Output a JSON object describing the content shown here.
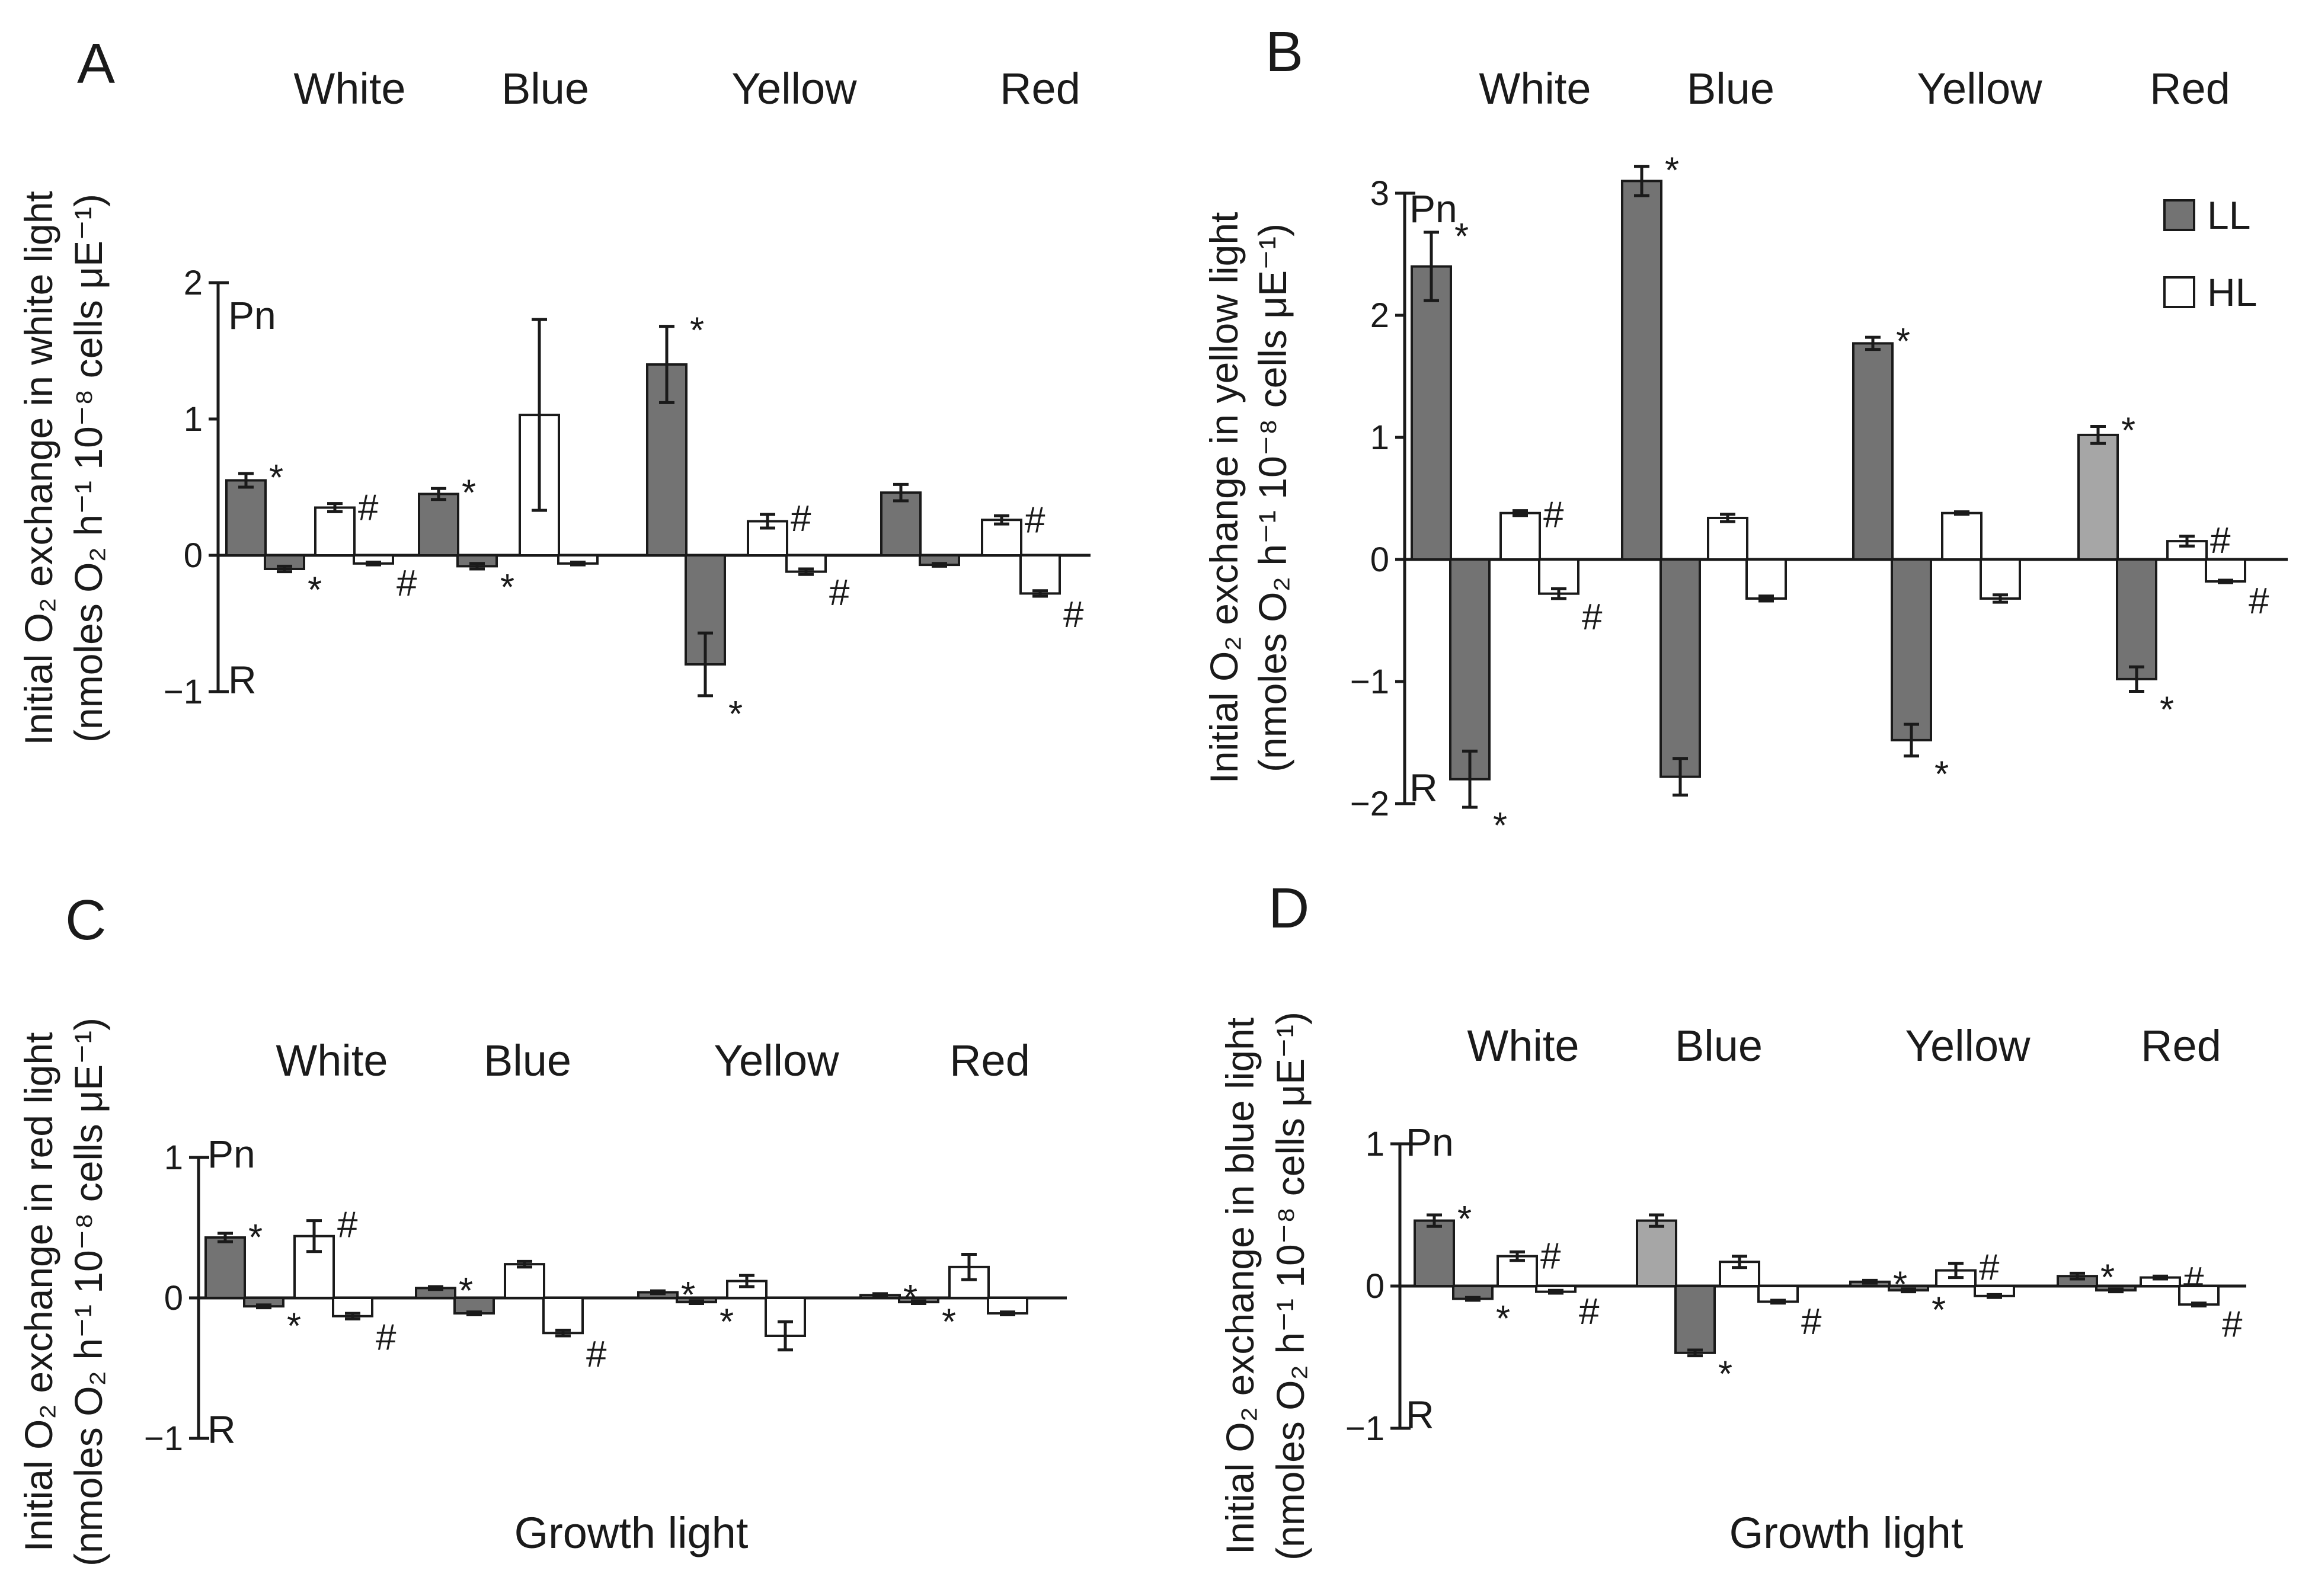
{
  "colors": {
    "LL": "#737373",
    "LL_light": "#a6a6a6",
    "HL": "#ffffff",
    "text": "#1a1a1a"
  },
  "legend": [
    {
      "key": "LL",
      "label": "LL"
    },
    {
      "key": "HL",
      "label": "HL"
    }
  ],
  "labels": {
    "pn": "Pn",
    "r": "R"
  },
  "chart_data": [
    {
      "panel": "A",
      "type": "bar",
      "categories": [
        "White",
        "Blue",
        "Yellow",
        "Red"
      ],
      "xlabel": "",
      "ylabel": [
        "Initial O₂ exchange in white light",
        "(nmoles O₂ h⁻¹ 10⁻⁸ cells μE⁻¹)"
      ],
      "ylim": [
        -1,
        2
      ],
      "yticks": [
        -1,
        0,
        1,
        2
      ],
      "bars": [
        {
          "group": "White",
          "series": "LL",
          "value": 0.55,
          "err": 0.05,
          "mark": "*"
        },
        {
          "group": "White",
          "series": "LL",
          "value": -0.1,
          "err": 0.02,
          "mark": "*"
        },
        {
          "group": "White",
          "series": "HL",
          "value": 0.35,
          "err": 0.03,
          "mark": "#"
        },
        {
          "group": "White",
          "series": "HL",
          "value": -0.06,
          "err": 0.01,
          "mark": "#"
        },
        {
          "group": "Blue",
          "series": "LL",
          "value": 0.45,
          "err": 0.04,
          "mark": "*"
        },
        {
          "group": "Blue",
          "series": "LL",
          "value": -0.08,
          "err": 0.02,
          "mark": "*"
        },
        {
          "group": "Blue",
          "series": "HL",
          "value": 1.03,
          "err": 0.7,
          "mark": ""
        },
        {
          "group": "Blue",
          "series": "HL",
          "value": -0.06,
          "err": 0.01,
          "mark": ""
        },
        {
          "group": "Yellow",
          "series": "LL",
          "value": 1.4,
          "err": 0.28,
          "mark": "*"
        },
        {
          "group": "Yellow",
          "series": "LL",
          "value": -0.8,
          "err": 0.23,
          "mark": "*"
        },
        {
          "group": "Yellow",
          "series": "HL",
          "value": 0.25,
          "err": 0.05,
          "mark": "#"
        },
        {
          "group": "Yellow",
          "series": "HL",
          "value": -0.12,
          "err": 0.02,
          "mark": "#"
        },
        {
          "group": "Red",
          "series": "LL",
          "value": 0.46,
          "err": 0.06,
          "mark": ""
        },
        {
          "group": "Red",
          "series": "LL",
          "value": -0.07,
          "err": 0.01,
          "mark": ""
        },
        {
          "group": "Red",
          "series": "HL",
          "value": 0.26,
          "err": 0.03,
          "mark": "#"
        },
        {
          "group": "Red",
          "series": "HL",
          "value": -0.28,
          "err": 0.02,
          "mark": "#"
        }
      ]
    },
    {
      "panel": "B",
      "type": "bar",
      "categories": [
        "White",
        "Blue",
        "Yellow",
        "Red"
      ],
      "xlabel": "",
      "ylabel": [
        "Initial O₂ exchange in yellow light",
        "(nmoles O₂ h⁻¹ 10⁻⁸ cells μE⁻¹)"
      ],
      "ylim": [
        -2,
        3
      ],
      "yticks": [
        -2,
        -1,
        0,
        1,
        2,
        3
      ],
      "legend_shown": true,
      "bars": [
        {
          "group": "White",
          "series": "LL",
          "value": 2.4,
          "err": 0.28,
          "mark": "*"
        },
        {
          "group": "White",
          "series": "LL",
          "value": -1.8,
          "err": 0.23,
          "mark": "*"
        },
        {
          "group": "White",
          "series": "HL",
          "value": 0.38,
          "err": 0.02,
          "mark": "#"
        },
        {
          "group": "White",
          "series": "HL",
          "value": -0.28,
          "err": 0.04,
          "mark": "#"
        },
        {
          "group": "Blue",
          "series": "LL",
          "value": 3.1,
          "err": 0.12,
          "mark": "*"
        },
        {
          "group": "Blue",
          "series": "LL",
          "value": -1.78,
          "err": 0.15,
          "mark": ""
        },
        {
          "group": "Blue",
          "series": "HL",
          "value": 0.34,
          "err": 0.03,
          "mark": ""
        },
        {
          "group": "Blue",
          "series": "HL",
          "value": -0.32,
          "err": 0.02,
          "mark": ""
        },
        {
          "group": "Yellow",
          "series": "LL",
          "value": 1.77,
          "err": 0.05,
          "mark": "*"
        },
        {
          "group": "Yellow",
          "series": "LL",
          "value": -1.48,
          "err": 0.13,
          "mark": "*"
        },
        {
          "group": "Yellow",
          "series": "HL",
          "value": 0.38,
          "err": 0.01,
          "mark": ""
        },
        {
          "group": "Yellow",
          "series": "HL",
          "value": -0.32,
          "err": 0.03,
          "mark": ""
        },
        {
          "group": "Red",
          "series": "LL_light",
          "value": 1.02,
          "err": 0.07,
          "mark": "*"
        },
        {
          "group": "Red",
          "series": "LL",
          "value": -0.98,
          "err": 0.1,
          "mark": "*"
        },
        {
          "group": "Red",
          "series": "HL",
          "value": 0.15,
          "err": 0.04,
          "mark": "#"
        },
        {
          "group": "Red",
          "series": "HL",
          "value": -0.18,
          "err": 0.01,
          "mark": "#"
        }
      ]
    },
    {
      "panel": "C",
      "type": "bar",
      "categories": [
        "White",
        "Blue",
        "Yellow",
        "Red"
      ],
      "xlabel": "Growth light",
      "ylabel": [
        "Initial O₂ exchange in red light",
        "(nmoles O₂ h⁻¹ 10⁻⁸ cells μE⁻¹)"
      ],
      "ylim": [
        -1,
        1
      ],
      "yticks": [
        -1,
        0,
        1
      ],
      "bars": [
        {
          "group": "White",
          "series": "LL",
          "value": 0.43,
          "err": 0.03,
          "mark": "*"
        },
        {
          "group": "White",
          "series": "LL",
          "value": -0.06,
          "err": 0.01,
          "mark": "*"
        },
        {
          "group": "White",
          "series": "HL",
          "value": 0.44,
          "err": 0.11,
          "mark": "#"
        },
        {
          "group": "White",
          "series": "HL",
          "value": -0.13,
          "err": 0.02,
          "mark": "#"
        },
        {
          "group": "Blue",
          "series": "LL",
          "value": 0.07,
          "err": 0.01,
          "mark": "*"
        },
        {
          "group": "Blue",
          "series": "LL",
          "value": -0.11,
          "err": 0.01,
          "mark": ""
        },
        {
          "group": "Blue",
          "series": "HL",
          "value": 0.24,
          "err": 0.02,
          "mark": ""
        },
        {
          "group": "Blue",
          "series": "HL",
          "value": -0.25,
          "err": 0.02,
          "mark": "#"
        },
        {
          "group": "Yellow",
          "series": "LL",
          "value": 0.04,
          "err": 0.01,
          "mark": "*"
        },
        {
          "group": "Yellow",
          "series": "LL",
          "value": -0.03,
          "err": 0.01,
          "mark": "*"
        },
        {
          "group": "Yellow",
          "series": "HL",
          "value": 0.12,
          "err": 0.04,
          "mark": ""
        },
        {
          "group": "Yellow",
          "series": "HL",
          "value": -0.27,
          "err": 0.1,
          "mark": ""
        },
        {
          "group": "Red",
          "series": "LL",
          "value": 0.02,
          "err": 0.01,
          "mark": "*"
        },
        {
          "group": "Red",
          "series": "LL",
          "value": -0.03,
          "err": 0.01,
          "mark": "*"
        },
        {
          "group": "Red",
          "series": "HL",
          "value": 0.22,
          "err": 0.09,
          "mark": ""
        },
        {
          "group": "Red",
          "series": "HL",
          "value": -0.11,
          "err": 0.01,
          "mark": ""
        }
      ]
    },
    {
      "panel": "D",
      "type": "bar",
      "categories": [
        "White",
        "Blue",
        "Yellow",
        "Red"
      ],
      "xlabel": "Growth light",
      "ylabel": [
        "Initial O₂ exchange in blue  light",
        "(nmoles O₂ h⁻¹ 10⁻⁸ cells μE⁻¹)"
      ],
      "ylim": [
        -1,
        1
      ],
      "yticks": [
        -1,
        0,
        1
      ],
      "bars": [
        {
          "group": "White",
          "series": "LL",
          "value": 0.46,
          "err": 0.04,
          "mark": "*"
        },
        {
          "group": "White",
          "series": "LL",
          "value": -0.09,
          "err": 0.01,
          "mark": "*"
        },
        {
          "group": "White",
          "series": "HL",
          "value": 0.21,
          "err": 0.03,
          "mark": "#"
        },
        {
          "group": "White",
          "series": "HL",
          "value": -0.04,
          "err": 0.01,
          "mark": "#"
        },
        {
          "group": "Blue",
          "series": "LL_light",
          "value": 0.46,
          "err": 0.04,
          "mark": ""
        },
        {
          "group": "Blue",
          "series": "LL",
          "value": -0.47,
          "err": 0.02,
          "mark": "*"
        },
        {
          "group": "Blue",
          "series": "HL",
          "value": 0.17,
          "err": 0.04,
          "mark": ""
        },
        {
          "group": "Blue",
          "series": "HL",
          "value": -0.11,
          "err": 0.01,
          "mark": "#"
        },
        {
          "group": "Yellow",
          "series": "LL",
          "value": 0.03,
          "err": 0.01,
          "mark": "*"
        },
        {
          "group": "Yellow",
          "series": "LL",
          "value": -0.03,
          "err": 0.01,
          "mark": "*"
        },
        {
          "group": "Yellow",
          "series": "HL",
          "value": 0.11,
          "err": 0.05,
          "mark": "#"
        },
        {
          "group": "Yellow",
          "series": "HL",
          "value": -0.07,
          "err": 0.01,
          "mark": ""
        },
        {
          "group": "Red",
          "series": "LL",
          "value": 0.07,
          "err": 0.02,
          "mark": "*"
        },
        {
          "group": "Red",
          "series": "LL",
          "value": -0.03,
          "err": 0.01,
          "mark": ""
        },
        {
          "group": "Red",
          "series": "HL",
          "value": 0.06,
          "err": 0.01,
          "mark": "#"
        },
        {
          "group": "Red",
          "series": "HL",
          "value": -0.13,
          "err": 0.01,
          "mark": "#"
        }
      ]
    }
  ]
}
